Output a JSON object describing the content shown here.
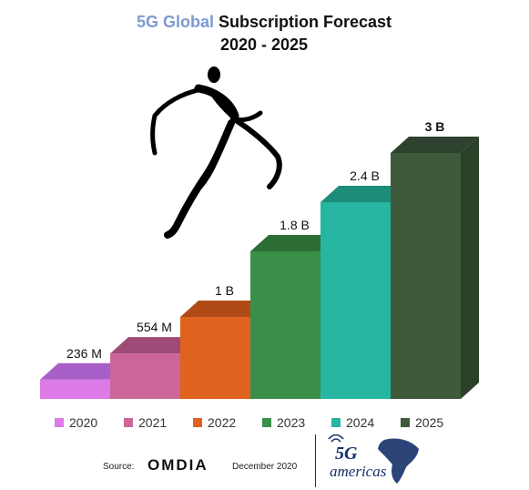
{
  "title": {
    "accent": "5G Global",
    "rest": " Subscription Forecast",
    "line2": "2020 - 2025"
  },
  "footer": {
    "source_label": "Source:",
    "source_name": "OMDIA",
    "date": "December 2020",
    "logo_text_5g": "5G",
    "logo_text_brand": "americas"
  },
  "colors": {
    "title_accent": "#7e9ad1",
    "logo_blue": "#16306a"
  },
  "chart_data": {
    "type": "bar",
    "title": "5G Global Subscription Forecast 2020 - 2025",
    "categories": [
      "2020",
      "2021",
      "2022",
      "2023",
      "2024",
      "2025"
    ],
    "values": [
      0.236,
      0.554,
      1.0,
      1.8,
      2.4,
      3.0
    ],
    "units": "billions of subscriptions",
    "data_labels": [
      "236 M",
      "554 M",
      "1 B",
      "1.8 B",
      "2.4 B",
      "3 B"
    ],
    "colors": [
      "#dd7be8",
      "#cc6699",
      "#e0621f",
      "#3a8f48",
      "#26b6a1",
      "#3f5a3a"
    ],
    "top_colors": [
      "#a95fc9",
      "#9e4c77",
      "#b04a16",
      "#2c6e35",
      "#1d8c7a",
      "#2f4230"
    ],
    "side_colors": [
      "#b95fc4",
      "#a0527a",
      "#b74e14",
      "#2b6b37",
      "#1c8b7c",
      "#2c3f29"
    ],
    "legend_position": "bottom",
    "grid": false,
    "style": "3d-step"
  }
}
